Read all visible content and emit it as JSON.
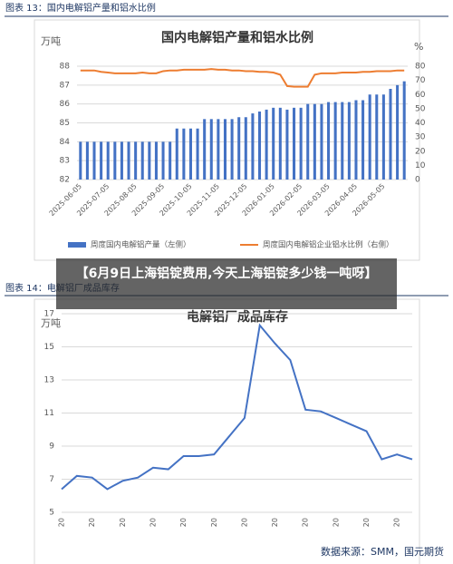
{
  "overlay_title": "【6月9日上海铝锭费用,今天上海铝锭多少钱一吨呀】",
  "chart_data": [
    {
      "type": "bar",
      "caption": "图表 13：国内电解铝产量和铝水比例",
      "title": "国内电解铝产量和铝水比例",
      "ylabel": "万吨",
      "y2label": "%",
      "categories": [
        "2025-06-05",
        null,
        null,
        null,
        "2025-07-05",
        null,
        null,
        null,
        "2025-08-05",
        null,
        null,
        null,
        "2025-09-05",
        null,
        null,
        null,
        "2025-10-05",
        null,
        null,
        null,
        "2025-11-05",
        null,
        null,
        null,
        "2025-12-05",
        null,
        null,
        null,
        "2026-01-05",
        null,
        null,
        null,
        "2026-02-05",
        null,
        null,
        null,
        "2026-03-05",
        null,
        null,
        null,
        "2026-04-05",
        null,
        null,
        null,
        "2026-05-05",
        null,
        null,
        null
      ],
      "series": [
        {
          "name": "周度国内电解铝产量（左侧）",
          "type": "bar",
          "color": "#4472c4",
          "values": [
            84.0,
            84.0,
            84.0,
            84.0,
            84.0,
            84.0,
            84.0,
            84.0,
            84.0,
            84.0,
            84.0,
            84.0,
            84.0,
            84.0,
            84.7,
            84.7,
            84.7,
            84.7,
            85.2,
            85.2,
            85.2,
            85.2,
            85.2,
            85.3,
            85.3,
            85.5,
            85.6,
            85.7,
            85.8,
            85.8,
            85.7,
            85.8,
            85.8,
            86.0,
            86.0,
            86.0,
            86.1,
            86.1,
            86.1,
            86.1,
            86.2,
            86.2,
            86.5,
            86.5,
            86.5,
            86.8,
            87.0,
            87.2
          ]
        },
        {
          "name": "周度国内电解铝企业铝水比例（右侧）",
          "type": "line",
          "axis": "y2",
          "color": "#ed7d31",
          "values": [
            77,
            77,
            77,
            76,
            75.5,
            75,
            75,
            75,
            75,
            75.5,
            75,
            75,
            76.5,
            77,
            77,
            77.5,
            77.5,
            77.5,
            77.5,
            78,
            77.5,
            77.5,
            77,
            77,
            76.5,
            76.5,
            76,
            76,
            75.5,
            74,
            66,
            65.5,
            65.5,
            65.5,
            74,
            75,
            75,
            75,
            75.5,
            75.5,
            75.5,
            76,
            76,
            76.5,
            76.5,
            76.5,
            77,
            77
          ]
        }
      ],
      "ylim": [
        82,
        88
      ],
      "yticks": [
        82,
        83,
        84,
        85,
        86,
        87,
        88
      ],
      "y2lim": [
        0,
        80
      ],
      "y2ticks": [
        0,
        10,
        20,
        30,
        40,
        50,
        60,
        70,
        80
      ],
      "grid": true
    },
    {
      "type": "line",
      "caption": "图表 14：电解铝厂成品库存",
      "title": "电解铝厂成品库存",
      "ylabel": "万吨",
      "source": "数据来源：SMM，国元期货",
      "categories": [
        "20",
        null,
        "20",
        null,
        "20",
        null,
        "20",
        null,
        "20",
        null,
        "20",
        null,
        "20",
        null,
        "20",
        null,
        "20",
        null,
        "20",
        null,
        "20",
        null,
        "20",
        null
      ],
      "series": [
        {
          "name": "电解铝厂成品库存",
          "color": "#4472c4",
          "values": [
            6.4,
            7.2,
            7.1,
            6.4,
            6.9,
            7.1,
            7.7,
            7.6,
            8.4,
            8.4,
            8.5,
            9.6,
            10.7,
            16.3,
            15.2,
            14.2,
            11.2,
            11.1,
            10.7,
            10.3,
            9.9,
            8.2,
            8.5,
            8.2
          ]
        }
      ],
      "ylim": [
        5,
        17
      ],
      "yticks": [
        5,
        7,
        9,
        11,
        13,
        15,
        17
      ],
      "grid": true
    }
  ]
}
